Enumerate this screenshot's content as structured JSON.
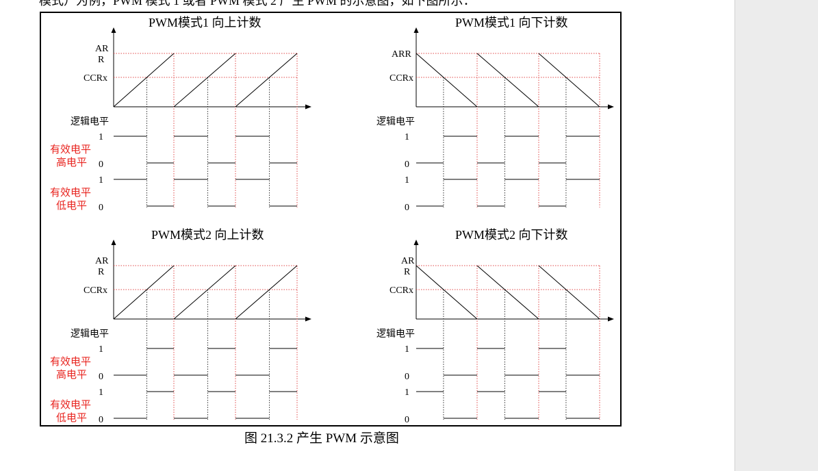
{
  "intro_text": "模式）为例，PWM 模式 1 或者 PWM 模式 2 产生 PWM 的示意图，如下图所示：",
  "caption": "图 21.3.2  产生 PWM 示意图",
  "colors": {
    "grid": "#e04848",
    "red_label": "#e8231e",
    "axis": "#000000",
    "sidebar": "#ececec"
  },
  "labels": {
    "arr_split": [
      "AR",
      "R"
    ],
    "arr_full": "ARR",
    "ccrx": "CCRx",
    "logic_level": "逻辑电平",
    "high_active": [
      "有效电平",
      "高电平"
    ],
    "low_active": [
      "有效电平",
      "低电平"
    ],
    "one": "1",
    "zero": "0"
  },
  "panels": [
    {
      "title": "PWM模式1 向上计数",
      "mode": 1,
      "direction": "up"
    },
    {
      "title": "PWM模式1 向下计数",
      "mode": 1,
      "direction": "down"
    },
    {
      "title": "PWM模式2 向上计数",
      "mode": 2,
      "direction": "up"
    },
    {
      "title": "PWM模式2 向下计数",
      "mode": 2,
      "direction": "down"
    }
  ]
}
